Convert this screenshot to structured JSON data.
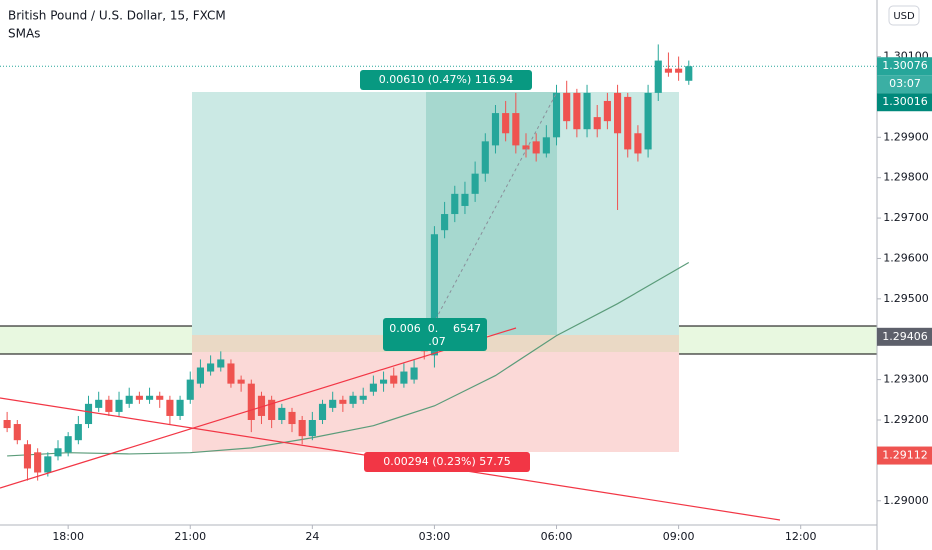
{
  "chart_data": {
    "type": "candlestick",
    "title": "British Pound / U.S. Dollar, 15, FXCM",
    "subtitle": "SMAs",
    "currency": "USD",
    "countdown": "03:07",
    "up_color": "#26a69a",
    "down_color": "#ef5350",
    "x": [
      -6,
      -5,
      -4,
      -3,
      -2,
      -1,
      0,
      1,
      2,
      3,
      4,
      5,
      6,
      7,
      8,
      9,
      10,
      11,
      12,
      13,
      14,
      15,
      16,
      17,
      18,
      19,
      20,
      21,
      22,
      23,
      24,
      25,
      26,
      27,
      28,
      29,
      30,
      31,
      32,
      33,
      34,
      35,
      36,
      37,
      38,
      39,
      40,
      41,
      42,
      43,
      44,
      45,
      46,
      47,
      48,
      49,
      50,
      51,
      52,
      53,
      54,
      55,
      56,
      57,
      58,
      59,
      60,
      61
    ],
    "open": [
      1.292,
      1.2919,
      1.2914,
      1.2912,
      1.2907,
      1.2911,
      1.2912,
      1.2915,
      1.2919,
      1.2923,
      1.2925,
      1.2922,
      1.2924,
      1.2926,
      1.2925,
      1.2926,
      1.2925,
      1.2921,
      1.2925,
      1.2929,
      1.2932,
      1.2933,
      1.2934,
      1.293,
      1.2929,
      1.2926,
      1.2925,
      1.292,
      1.2922,
      1.292,
      1.2916,
      1.292,
      1.2923,
      1.2925,
      1.2924,
      1.2925,
      1.2927,
      1.2929,
      1.2931,
      1.2929,
      1.293,
      1.294,
      1.2936,
      1.2967,
      1.2971,
      1.2973,
      1.2976,
      1.2981,
      1.2988,
      1.2996,
      1.2996,
      1.2988,
      1.2989,
      1.2986,
      1.299,
      1.3001,
      1.3001,
      1.2992,
      1.2995,
      1.2999,
      1.3001,
      1.3,
      1.2991,
      1.2987,
      1.3001,
      1.3007,
      1.3007,
      1.3004
    ],
    "high": [
      1.2922,
      1.292,
      1.2915,
      1.2913,
      1.2912,
      1.2915,
      1.2917,
      1.2921,
      1.2926,
      1.2927,
      1.2926,
      1.2927,
      1.2928,
      1.2927,
      1.2928,
      1.2927,
      1.2926,
      1.2926,
      1.2932,
      1.2935,
      1.2936,
      1.2937,
      1.2935,
      1.2931,
      1.293,
      1.2927,
      1.2926,
      1.2924,
      1.2923,
      1.2921,
      1.2922,
      1.2925,
      1.2927,
      1.2926,
      1.2927,
      1.2928,
      1.2931,
      1.2932,
      1.2933,
      1.2934,
      1.2935,
      1.2942,
      1.2968,
      1.2974,
      1.2978,
      1.2979,
      1.2984,
      1.2991,
      1.2998,
      1.2999,
      1.3001,
      1.2991,
      1.2991,
      1.2993,
      1.3003,
      1.3004,
      1.3002,
      1.3003,
      1.2998,
      1.3001,
      1.3003,
      1.3001,
      1.2993,
      1.3003,
      1.3013,
      1.3011,
      1.301,
      1.3009
    ],
    "low": [
      1.2917,
      1.2914,
      1.2905,
      1.2905,
      1.2906,
      1.291,
      1.2911,
      1.2914,
      1.2918,
      1.2922,
      1.2921,
      1.2921,
      1.2923,
      1.2924,
      1.2924,
      1.2923,
      1.2919,
      1.292,
      1.2924,
      1.2928,
      1.2931,
      1.2932,
      1.2928,
      1.2927,
      1.2917,
      1.2919,
      1.2918,
      1.2919,
      1.2917,
      1.2914,
      1.2915,
      1.2919,
      1.2922,
      1.2922,
      1.2923,
      1.2924,
      1.2926,
      1.2927,
      1.2928,
      1.2928,
      1.2929,
      1.2935,
      1.2933,
      1.2965,
      1.2969,
      1.2971,
      1.2974,
      1.2979,
      1.2986,
      1.2989,
      1.2986,
      1.2985,
      1.2984,
      1.2985,
      1.2988,
      1.2992,
      1.299,
      1.299,
      1.299,
      1.2992,
      1.2972,
      1.2985,
      1.2984,
      1.2985,
      1.2999,
      1.3005,
      1.3004,
      1.3003
    ],
    "close": [
      1.2918,
      1.2915,
      1.2908,
      1.2907,
      1.2911,
      1.2913,
      1.2916,
      1.2919,
      1.2924,
      1.2925,
      1.2922,
      1.2925,
      1.2926,
      1.2925,
      1.2926,
      1.2925,
      1.2921,
      1.2925,
      1.293,
      1.2933,
      1.2934,
      1.2935,
      1.2929,
      1.2929,
      1.292,
      1.2921,
      1.292,
      1.2923,
      1.2919,
      1.2916,
      1.292,
      1.2924,
      1.2925,
      1.2924,
      1.2926,
      1.2926,
      1.2929,
      1.293,
      1.2929,
      1.2932,
      1.2933,
      1.2937,
      1.2966,
      1.2971,
      1.2976,
      1.2976,
      1.2981,
      1.2989,
      1.2996,
      1.2991,
      1.2988,
      1.2987,
      1.2986,
      1.299,
      1.3001,
      1.2994,
      1.2992,
      1.3001,
      1.2992,
      1.2994,
      1.2991,
      1.2987,
      1.2986,
      1.3001,
      1.3009,
      1.3006,
      1.3006,
      1.30076
    ],
    "sma": {
      "color": "#5b9c7a",
      "x": [
        -6,
        0,
        6,
        12,
        18,
        24,
        30,
        36,
        42,
        48,
        54,
        61
      ],
      "values": [
        1.29111,
        1.29119,
        1.29116,
        1.29119,
        1.29131,
        1.29156,
        1.29186,
        1.29235,
        1.2931,
        1.29409,
        1.29488,
        1.2959
      ]
    },
    "xlim": [
      -6.7,
      79.5
    ],
    "xticks": [
      {
        "value": 0,
        "label": "18:00"
      },
      {
        "value": 12,
        "label": "21:00"
      },
      24,
      {
        "value": 36,
        "label": "03:00"
      },
      {
        "value": 48,
        "label": "06:00"
      },
      {
        "value": 60,
        "label": "09:00"
      },
      {
        "value": 72,
        "label": "12:00"
      }
    ],
    "ylim": [
      1.2894,
      1.3024
    ],
    "yticks": [
      {
        "value": 1.29,
        "label": "1.29000"
      },
      {
        "value": 1.292,
        "label": "1.29200"
      },
      {
        "value": 1.293,
        "label": "1.29300"
      },
      {
        "value": 1.295,
        "label": "1.29500"
      },
      {
        "value": 1.296,
        "label": "1.29600"
      },
      {
        "value": 1.297,
        "label": "1.29700"
      },
      {
        "value": 1.298,
        "label": "1.29800"
      },
      {
        "value": 1.299,
        "label": "1.29900"
      },
      {
        "value": 1.301,
        "label": "1.30100"
      }
    ],
    "grid": false,
    "price_tags": [
      {
        "value": 1.30076,
        "color": "#26a69a"
      },
      {
        "value": 1.30016,
        "color": "#00897b"
      },
      {
        "value": 1.29406,
        "color": "#5d606b"
      },
      {
        "value": 1.29112,
        "color": "#ef5350"
      }
    ],
    "annotations": {
      "target": "0.00610 (0.47%) 116.94",
      "stop": "0.00294 (0.23%) 57.75",
      "entry": [
        "0.006",
        "0.",
        "6547",
        ".07"
      ]
    }
  }
}
